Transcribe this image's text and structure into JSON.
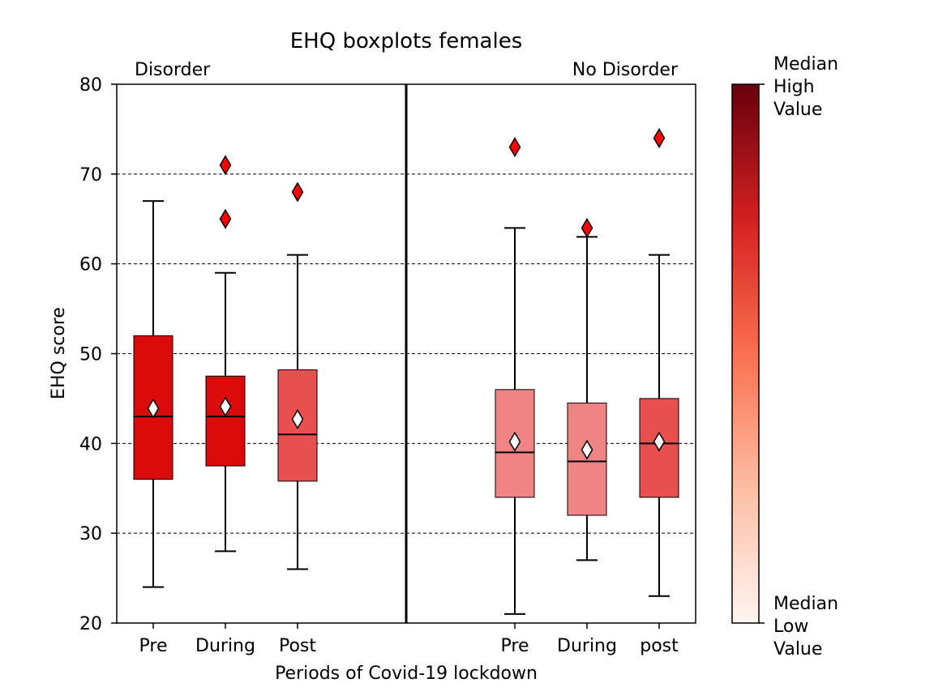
{
  "chart_data": {
    "type": "box",
    "title": "EHQ boxplots females",
    "xlabel": "Periods of Covid-19 lockdown",
    "ylabel": "EHQ score",
    "ylim": [
      20,
      80
    ],
    "yticks": [
      20,
      30,
      40,
      50,
      60,
      70,
      80
    ],
    "grid": "horizontal-dashed",
    "groups": [
      {
        "label": "Disorder",
        "label_color": "#ff0000",
        "boxes": [
          {
            "category": "Pre",
            "whisker_low": 24,
            "q1": 36,
            "median": 43,
            "q3": 52,
            "whisker_high": 67,
            "mean": 43.9,
            "outliers": [],
            "fill": "#dc0b0b"
          },
          {
            "category": "During",
            "whisker_low": 28,
            "q1": 37.5,
            "median": 43,
            "q3": 47.5,
            "whisker_high": 59,
            "mean": 44.1,
            "outliers": [
              65,
              71
            ],
            "fill": "#dc0b0b"
          },
          {
            "category": "Post",
            "whisker_low": 26,
            "q1": 35.8,
            "median": 41,
            "q3": 48.2,
            "whisker_high": 61,
            "mean": 42.7,
            "outliers": [
              68
            ],
            "fill": "#ea4f4f"
          }
        ]
      },
      {
        "label": "No Disorder",
        "label_color": "#ff0000",
        "boxes": [
          {
            "category": "Pre",
            "whisker_low": 21,
            "q1": 34,
            "median": 39,
            "q3": 46,
            "whisker_high": 64,
            "mean": 40.2,
            "outliers": [
              73
            ],
            "fill": "#f08484"
          },
          {
            "category": "During",
            "whisker_low": 27,
            "q1": 32,
            "median": 38,
            "q3": 44.5,
            "whisker_high": 63,
            "mean": 39.3,
            "outliers": [
              64
            ],
            "fill": "#f08484"
          },
          {
            "category": "post",
            "whisker_low": 23,
            "q1": 34,
            "median": 40,
            "q3": 45,
            "whisker_high": 61,
            "mean": 40.2,
            "outliers": [
              74
            ],
            "fill": "#ea4f4f"
          }
        ]
      }
    ],
    "colorbar": {
      "high_label": [
        "Median",
        "High",
        "Value"
      ],
      "low_label": [
        "Median",
        "Low",
        "Value"
      ],
      "colormap": "Reds"
    }
  }
}
